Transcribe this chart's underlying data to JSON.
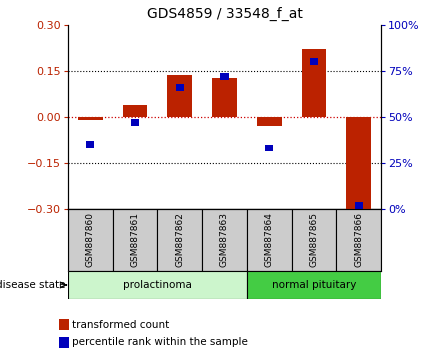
{
  "title": "GDS4859 / 33548_f_at",
  "samples": [
    "GSM887860",
    "GSM887861",
    "GSM887862",
    "GSM887863",
    "GSM887864",
    "GSM887865",
    "GSM887866"
  ],
  "transformed_count": [
    -0.01,
    0.04,
    0.135,
    0.125,
    -0.03,
    0.22,
    -0.3
  ],
  "percentile_rank": [
    35,
    47,
    66,
    72,
    33,
    80,
    2
  ],
  "ylim_left": [
    -0.3,
    0.3
  ],
  "ylim_right": [
    0,
    100
  ],
  "yticks_left": [
    -0.3,
    -0.15,
    0,
    0.15,
    0.3
  ],
  "yticks_right": [
    0,
    25,
    50,
    75,
    100
  ],
  "bar_color": "#bb2200",
  "point_color": "#0000bb",
  "disease_groups": [
    {
      "label": "prolactinoma",
      "indices": [
        0,
        1,
        2,
        3
      ],
      "color_light": "#d8f5d8",
      "color_dark": "#55cc55"
    },
    {
      "label": "normal pituitary",
      "indices": [
        4,
        5,
        6
      ],
      "color_light": "#55cc55",
      "color_dark": "#55cc55"
    }
  ],
  "disease_state_label": "disease state",
  "legend_items": [
    {
      "label": "transformed count",
      "color": "#bb2200"
    },
    {
      "label": "percentile rank within the sample",
      "color": "#0000bb"
    }
  ],
  "zero_line_color": "#cc0000",
  "background_color": "#ffffff",
  "sample_box_color": "#cccccc"
}
